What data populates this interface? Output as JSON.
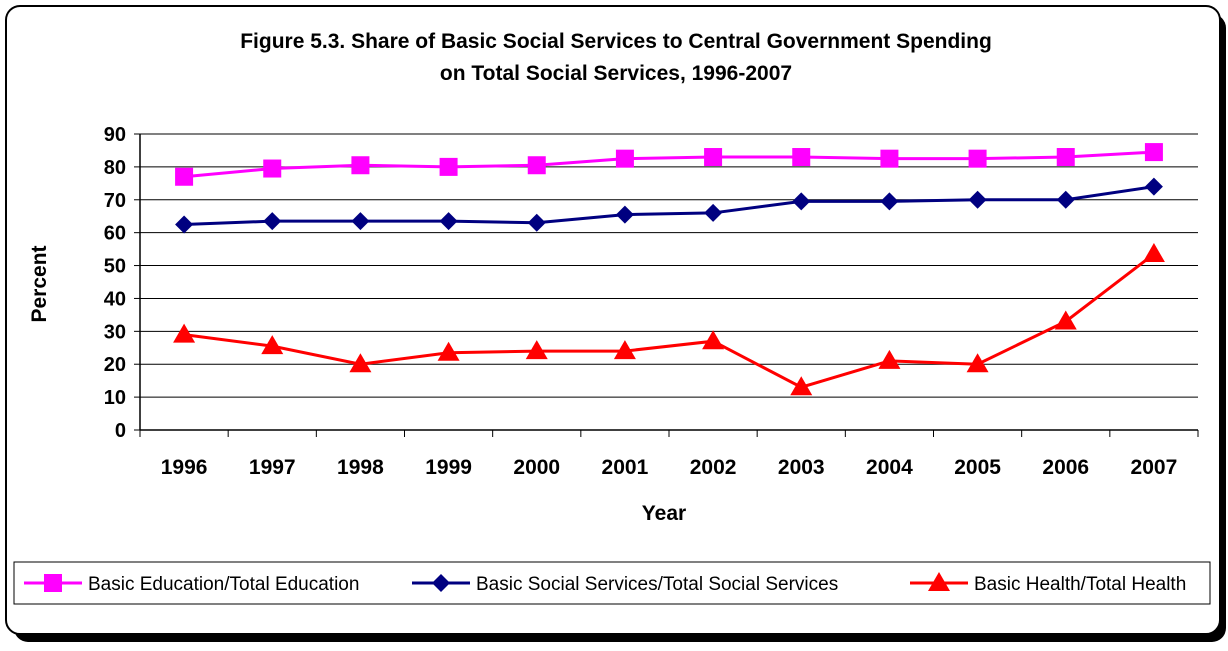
{
  "chart_data": {
    "type": "line",
    "title_line1": "Figure 5.3.  Share of Basic Social Services to Central Government Spending",
    "title_line2": "on Total Social Services, 1996-2007",
    "xlabel": "Year",
    "ylabel": "Percent",
    "ylim": [
      0,
      90
    ],
    "yticks": [
      0,
      10,
      20,
      30,
      40,
      50,
      60,
      70,
      80,
      90
    ],
    "categories": [
      "1996",
      "1997",
      "1998",
      "1999",
      "2000",
      "2001",
      "2002",
      "2003",
      "2004",
      "2005",
      "2006",
      "2007"
    ],
    "grid": "horizontal",
    "legend_position": "bottom",
    "series": [
      {
        "name": "Basic Education/Total Education",
        "color": "#ff00ff",
        "marker": "square",
        "values": [
          77,
          79.5,
          80.5,
          80,
          80.5,
          82.5,
          83,
          83,
          82.5,
          82.5,
          83,
          84.5
        ]
      },
      {
        "name": "Basic Social Services/Total Social Services",
        "color": "#000080",
        "marker": "diamond",
        "values": [
          62.5,
          63.5,
          63.5,
          63.5,
          63,
          65.5,
          66,
          69.5,
          69.5,
          70,
          70,
          74
        ]
      },
      {
        "name": "Basic Health/Total Health",
        "color": "#ff0000",
        "marker": "triangle",
        "values": [
          29,
          25.5,
          20,
          23.5,
          24,
          24,
          27,
          13,
          21,
          20,
          33,
          53.5
        ]
      }
    ]
  }
}
